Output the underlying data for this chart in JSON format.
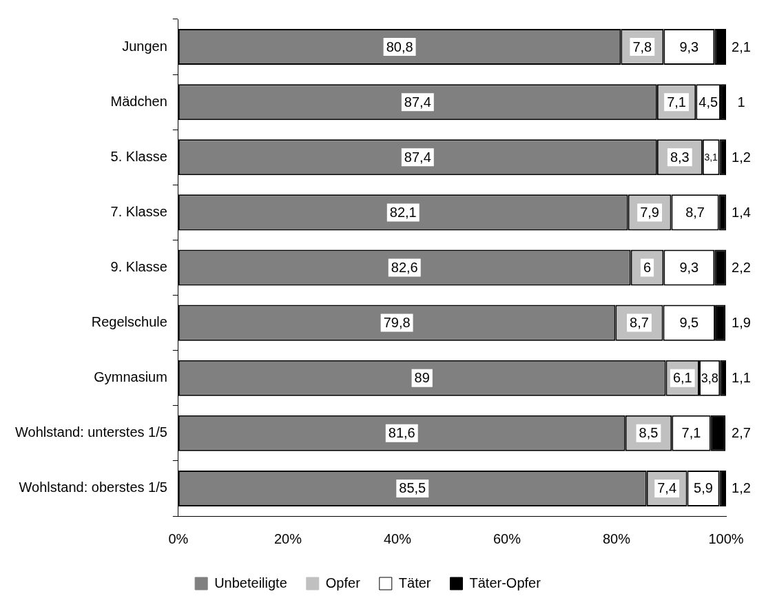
{
  "chart_data": {
    "type": "bar",
    "orientation": "horizontal",
    "stacked": true,
    "categories": [
      "Jungen",
      "Mädchen",
      "5. Klasse",
      "7. Klasse",
      "9. Klasse",
      "Regelschule",
      "Gymnasium",
      "Wohlstand: unterstes 1/5",
      "Wohlstand: oberstes 1/5"
    ],
    "series": [
      {
        "name": "Unbeteiligte",
        "color": "#808080",
        "values": [
          80.8,
          87.4,
          87.4,
          82.1,
          82.6,
          79.8,
          89,
          81.6,
          85.5
        ],
        "value_labels": [
          "80,8",
          "87,4",
          "87,4",
          "82,1",
          "82,6",
          "79,8",
          "89",
          "81,6",
          "85,5"
        ]
      },
      {
        "name": "Opfer",
        "color": "#c0c0c0",
        "values": [
          7.8,
          7.1,
          8.3,
          7.9,
          6,
          8.7,
          6.1,
          8.5,
          7.4
        ],
        "value_labels": [
          "7,8",
          "7,1",
          "8,3",
          "7,9",
          "6",
          "8,7",
          "6,1",
          "8,5",
          "7,4"
        ]
      },
      {
        "name": "Täter",
        "color": "#ffffff",
        "values": [
          9.3,
          4.5,
          3.1,
          8.7,
          9.3,
          9.5,
          3.8,
          7.1,
          5.9
        ],
        "value_labels": [
          "9,3",
          "4,5",
          "3,1",
          "8,7",
          "9,3",
          "9,5",
          "3,8",
          "7,1",
          "5,9"
        ]
      },
      {
        "name": "Täter-Opfer",
        "color": "#000000",
        "values": [
          2.1,
          1,
          1.2,
          1.4,
          2.2,
          1.9,
          1.1,
          2.7,
          1.2
        ],
        "value_labels": [
          "2,1",
          "1",
          "1,2",
          "1,4",
          "2,2",
          "1,9",
          "1,1",
          "2,7",
          "1,2"
        ]
      }
    ],
    "xlim": [
      0,
      100
    ],
    "xticks": [
      {
        "value": 0,
        "label": "0%"
      },
      {
        "value": 20,
        "label": "20%"
      },
      {
        "value": 40,
        "label": "40%"
      },
      {
        "value": 60,
        "label": "60%"
      },
      {
        "value": 80,
        "label": "80%"
      },
      {
        "value": 100,
        "label": "100%"
      }
    ],
    "grid": false,
    "legend": "bottom"
  }
}
